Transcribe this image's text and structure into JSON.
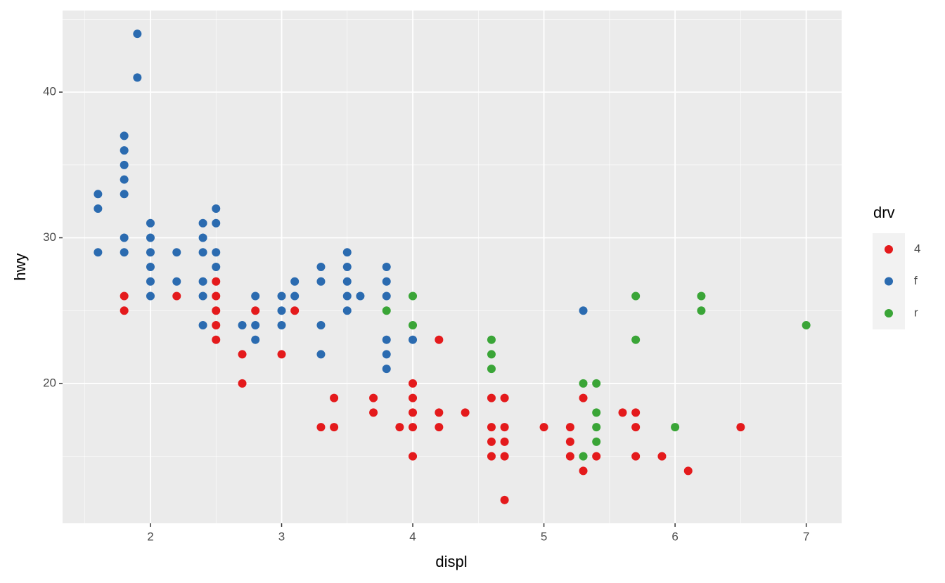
{
  "chart_data": {
    "type": "scatter",
    "x_label": "displ",
    "y_label": "hwy",
    "xlim": [
      1.33,
      7.27
    ],
    "ylim": [
      10.4,
      45.6
    ],
    "xticks": [
      2,
      3,
      4,
      5,
      6,
      7
    ],
    "yticks": [
      20,
      30,
      40
    ],
    "x_minor_ticks": [
      1.5,
      2.5,
      3.5,
      4.5,
      5.5,
      6.5
    ],
    "y_minor_ticks": [
      15,
      25,
      35,
      45
    ],
    "grid": true,
    "legend_title": "drv",
    "legend_position": "right",
    "series": [
      {
        "name": "4",
        "color": "#e41a1c",
        "x": [
          1.8,
          1.8,
          2.2,
          2.5,
          2.5,
          2.5,
          2.5,
          2.5,
          2.7,
          2.7,
          2.8,
          3.0,
          3.1,
          3.3,
          3.4,
          3.4,
          3.7,
          3.7,
          3.9,
          4.0,
          4.0,
          4.0,
          4.0,
          4.0,
          4.2,
          4.2,
          4.2,
          4.4,
          4.6,
          4.6,
          4.6,
          4.6,
          4.7,
          4.7,
          4.7,
          4.7,
          4.7,
          5.0,
          5.2,
          5.2,
          5.2,
          5.3,
          5.3,
          5.4,
          5.6,
          5.7,
          5.7,
          5.7,
          5.9,
          6.1,
          6.5
        ],
        "values": [
          26,
          25,
          26,
          27,
          26,
          25,
          24,
          23,
          22,
          20,
          25,
          22,
          25,
          17,
          19,
          17,
          19,
          18,
          17,
          20,
          19,
          18,
          17,
          15,
          23,
          18,
          17,
          18,
          19,
          17,
          16,
          15,
          19,
          17,
          16,
          15,
          12,
          17,
          17,
          16,
          15,
          19,
          14,
          15,
          18,
          18,
          17,
          15,
          15,
          14,
          17
        ]
      },
      {
        "name": "f",
        "color": "#2b6bb0",
        "x": [
          1.6,
          1.6,
          1.6,
          1.8,
          1.8,
          1.8,
          1.8,
          1.8,
          1.8,
          1.8,
          1.9,
          1.9,
          2.0,
          2.0,
          2.0,
          2.0,
          2.0,
          2.0,
          2.2,
          2.2,
          2.4,
          2.4,
          2.4,
          2.4,
          2.4,
          2.4,
          2.5,
          2.5,
          2.5,
          2.5,
          2.7,
          2.8,
          2.8,
          2.8,
          3.0,
          3.0,
          3.0,
          3.1,
          3.1,
          3.3,
          3.3,
          3.3,
          3.3,
          3.5,
          3.5,
          3.5,
          3.5,
          3.5,
          3.6,
          3.8,
          3.8,
          3.8,
          3.8,
          3.8,
          3.8,
          4.0,
          5.3
        ],
        "values": [
          33,
          32,
          29,
          37,
          36,
          35,
          34,
          33,
          30,
          29,
          44,
          41,
          31,
          30,
          29,
          28,
          27,
          26,
          29,
          27,
          31,
          30,
          29,
          27,
          26,
          24,
          32,
          31,
          29,
          28,
          24,
          26,
          24,
          23,
          26,
          25,
          24,
          27,
          26,
          28,
          27,
          24,
          22,
          29,
          28,
          27,
          26,
          25,
          26,
          28,
          27,
          26,
          23,
          22,
          21,
          23,
          25
        ]
      },
      {
        "name": "r",
        "color": "#3aa537",
        "x": [
          3.8,
          4.0,
          4.0,
          4.6,
          4.6,
          4.6,
          5.3,
          5.3,
          5.4,
          5.4,
          5.4,
          5.4,
          5.7,
          5.7,
          6.0,
          6.2,
          6.2,
          7.0
        ],
        "values": [
          25,
          26,
          24,
          23,
          22,
          21,
          20,
          15,
          20,
          18,
          17,
          16,
          26,
          23,
          17,
          26,
          25,
          24
        ]
      }
    ]
  }
}
